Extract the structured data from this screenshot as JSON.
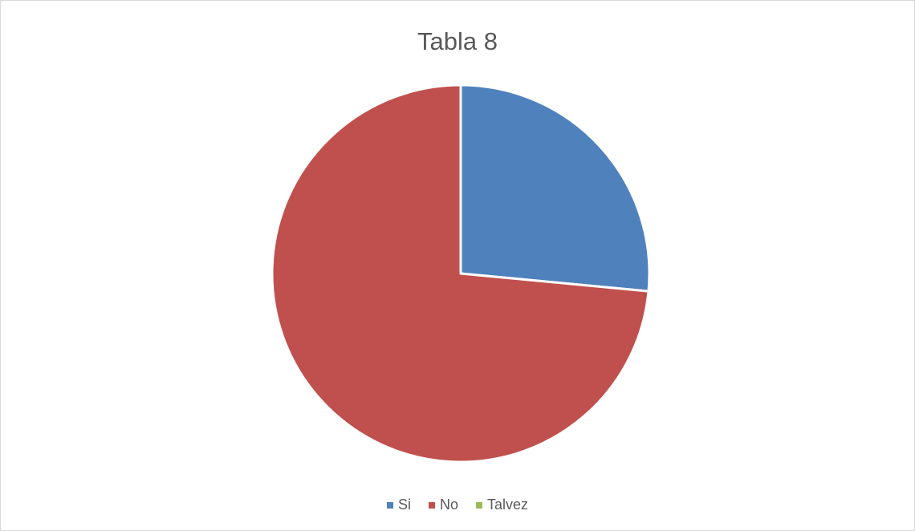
{
  "chart_data": {
    "type": "pie",
    "title": "Tabla 8",
    "categories": [
      "Si",
      "No",
      "Talvez"
    ],
    "values": [
      26.5,
      73.5,
      0
    ],
    "colors": [
      "#4f81bd",
      "#c0504d",
      "#9bbb59"
    ],
    "legend_position": "bottom"
  }
}
